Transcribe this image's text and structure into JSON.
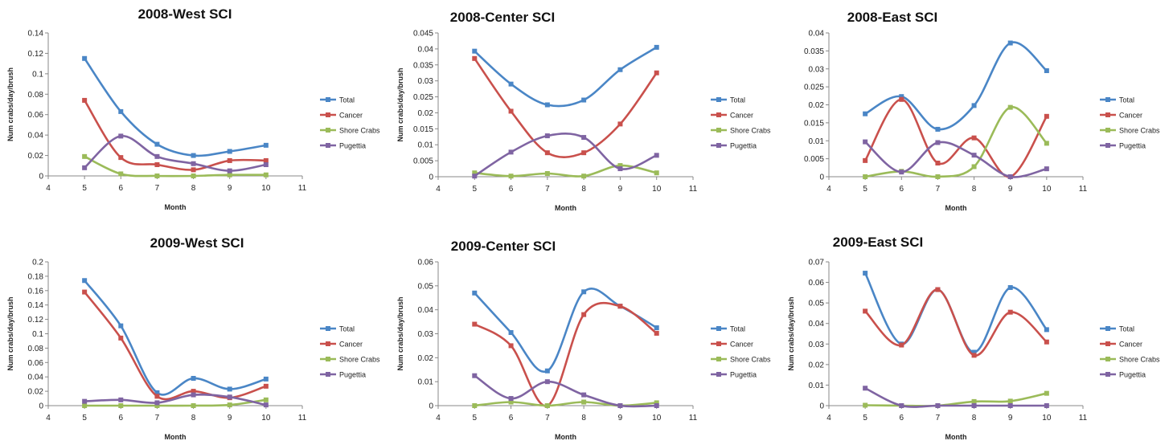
{
  "colors": {
    "Total": "#4a86c6",
    "Cancer": "#c9504c",
    "Shore Crabs": "#9bbb59",
    "Pugettia": "#7f64a2"
  },
  "chart_data": [
    {
      "type": "line",
      "title": "2008-West SCI",
      "xlabel": "Month",
      "ylabel": "Num crabs/day/brush",
      "x": [
        5,
        6,
        7,
        8,
        9,
        10
      ],
      "xlim": [
        4,
        11
      ],
      "ylim": [
        0,
        0.14
      ],
      "xticks": [
        "4",
        "5",
        "6",
        "7",
        "8",
        "9",
        "10",
        "11"
      ],
      "yticks": [
        "0",
        "0.02",
        "0.04",
        "0.06",
        "0.08",
        "0.1",
        "0.12",
        "0.14"
      ],
      "legend": "right",
      "grid": false,
      "series": [
        {
          "name": "Total",
          "values": [
            0.115,
            0.063,
            0.031,
            0.02,
            0.024,
            0.03
          ]
        },
        {
          "name": "Cancer",
          "values": [
            0.074,
            0.018,
            0.011,
            0.006,
            0.015,
            0.015
          ]
        },
        {
          "name": "Shore Crabs",
          "values": [
            0.019,
            0.002,
            0.0,
            0.0,
            0.001,
            0.001
          ]
        },
        {
          "name": "Pugettia",
          "values": [
            0.008,
            0.039,
            0.019,
            0.012,
            0.005,
            0.011
          ]
        }
      ]
    },
    {
      "type": "line",
      "title": "2008-Center SCI",
      "xlabel": "Month",
      "ylabel": "Num crabs/day/brush",
      "x": [
        5,
        6,
        7,
        8,
        9,
        10
      ],
      "xlim": [
        4,
        11
      ],
      "ylim": [
        0,
        0.045
      ],
      "xticks": [
        "4",
        "5",
        "6",
        "7",
        "8",
        "9",
        "10",
        "11"
      ],
      "yticks": [
        "0",
        "0.005",
        "0.01",
        "0.015",
        "0.02",
        "0.025",
        "0.03",
        "0.035",
        "0.04",
        "0.045"
      ],
      "legend": "right",
      "grid": false,
      "series": [
        {
          "name": "Total",
          "values": [
            0.0393,
            0.029,
            0.0225,
            0.024,
            0.0335,
            0.0405
          ]
        },
        {
          "name": "Cancer",
          "values": [
            0.037,
            0.0205,
            0.0075,
            0.0075,
            0.0165,
            0.0325
          ]
        },
        {
          "name": "Shore Crabs",
          "values": [
            0.0012,
            0.0002,
            0.001,
            0.0002,
            0.0035,
            0.0012
          ]
        },
        {
          "name": "Pugettia",
          "values": [
            0.0002,
            0.0077,
            0.0128,
            0.0123,
            0.0025,
            0.0067
          ]
        }
      ]
    },
    {
      "type": "line",
      "title": "2008-East SCI",
      "xlabel": "Month",
      "ylabel": "",
      "x": [
        5,
        6,
        7,
        8,
        9,
        10
      ],
      "xlim": [
        4,
        11
      ],
      "ylim": [
        0,
        0.04
      ],
      "xticks": [
        "4",
        "5",
        "6",
        "7",
        "8",
        "9",
        "10",
        "11"
      ],
      "yticks": [
        "0",
        "0.005",
        "0.01",
        "0.015",
        "0.02",
        "0.025",
        "0.03",
        "0.035",
        "0.04"
      ],
      "legend": "right",
      "grid": false,
      "series": [
        {
          "name": "Total",
          "values": [
            0.0175,
            0.0223,
            0.0132,
            0.0198,
            0.0372,
            0.0295
          ]
        },
        {
          "name": "Cancer",
          "values": [
            0.0045,
            0.0215,
            0.0038,
            0.0108,
            0.0,
            0.0168
          ]
        },
        {
          "name": "Shore Crabs",
          "values": [
            0.0,
            0.0015,
            0.0,
            0.0028,
            0.0193,
            0.0093
          ]
        },
        {
          "name": "Pugettia",
          "values": [
            0.0097,
            0.0013,
            0.0095,
            0.006,
            0.0,
            0.0022
          ]
        }
      ]
    },
    {
      "type": "line",
      "title": "2009-West SCI",
      "xlabel": "Month",
      "ylabel": "Num crabs/day/brush",
      "x": [
        5,
        6,
        7,
        8,
        9,
        10
      ],
      "xlim": [
        4,
        11
      ],
      "ylim": [
        0,
        0.2
      ],
      "xticks": [
        "4",
        "5",
        "6",
        "7",
        "8",
        "9",
        "10",
        "11"
      ],
      "yticks": [
        "0",
        "0.02",
        "0.04",
        "0.06",
        "0.08",
        "0.1",
        "0.12",
        "0.14",
        "0.16",
        "0.18",
        "0.2"
      ],
      "legend": "right",
      "grid": false,
      "series": [
        {
          "name": "Total",
          "values": [
            0.174,
            0.111,
            0.018,
            0.038,
            0.023,
            0.037
          ]
        },
        {
          "name": "Cancer",
          "values": [
            0.158,
            0.094,
            0.013,
            0.02,
            0.011,
            0.027
          ]
        },
        {
          "name": "Shore Crabs",
          "values": [
            0.0,
            0.0,
            0.0,
            0.0,
            0.001,
            0.008
          ]
        },
        {
          "name": "Pugettia",
          "values": [
            0.006,
            0.008,
            0.004,
            0.015,
            0.012,
            0.001
          ]
        }
      ]
    },
    {
      "type": "line",
      "title": "2009-Center SCI",
      "xlabel": "Month",
      "ylabel": "Num crabs/day/brush",
      "x": [
        5,
        6,
        7,
        8,
        9,
        10
      ],
      "xlim": [
        4,
        11
      ],
      "ylim": [
        0,
        0.06
      ],
      "xticks": [
        "4",
        "5",
        "6",
        "7",
        "8",
        "9",
        "10",
        "11"
      ],
      "yticks": [
        "0",
        "0.01",
        "0.02",
        "0.03",
        "0.04",
        "0.05",
        "0.06"
      ],
      "legend": "right",
      "grid": false,
      "series": [
        {
          "name": "Total",
          "values": [
            0.047,
            0.0305,
            0.0145,
            0.0475,
            0.0415,
            0.0325
          ]
        },
        {
          "name": "Cancer",
          "values": [
            0.034,
            0.025,
            0.0,
            0.038,
            0.0415,
            0.0302
          ]
        },
        {
          "name": "Shore Crabs",
          "values": [
            0.0,
            0.0015,
            0.0,
            0.0015,
            0.0,
            0.0012
          ]
        },
        {
          "name": "Pugettia",
          "values": [
            0.0125,
            0.003,
            0.01,
            0.0045,
            0.0,
            0.0
          ]
        }
      ]
    },
    {
      "type": "line",
      "title": "2009-East SCI",
      "xlabel": "Month",
      "ylabel": "Num crabs/day/brush",
      "x": [
        5,
        6,
        7,
        8,
        9,
        10
      ],
      "xlim": [
        4,
        11
      ],
      "ylim": [
        0,
        0.07
      ],
      "xticks": [
        "4",
        "5",
        "6",
        "7",
        "8",
        "9",
        "10",
        "11"
      ],
      "yticks": [
        "0",
        "0.01",
        "0.02",
        "0.03",
        "0.04",
        "0.05",
        "0.06",
        "0.07"
      ],
      "legend": "right",
      "grid": false,
      "series": [
        {
          "name": "Total",
          "values": [
            0.0645,
            0.03,
            0.0565,
            0.026,
            0.0575,
            0.037
          ]
        },
        {
          "name": "Cancer",
          "values": [
            0.046,
            0.0295,
            0.0565,
            0.0245,
            0.0455,
            0.031
          ]
        },
        {
          "name": "Shore Crabs",
          "values": [
            0.0002,
            0.0,
            0.0,
            0.002,
            0.0022,
            0.006
          ]
        },
        {
          "name": "Pugettia",
          "values": [
            0.0085,
            0.0,
            0.0,
            0.0,
            0.0,
            0.0
          ]
        }
      ]
    }
  ]
}
